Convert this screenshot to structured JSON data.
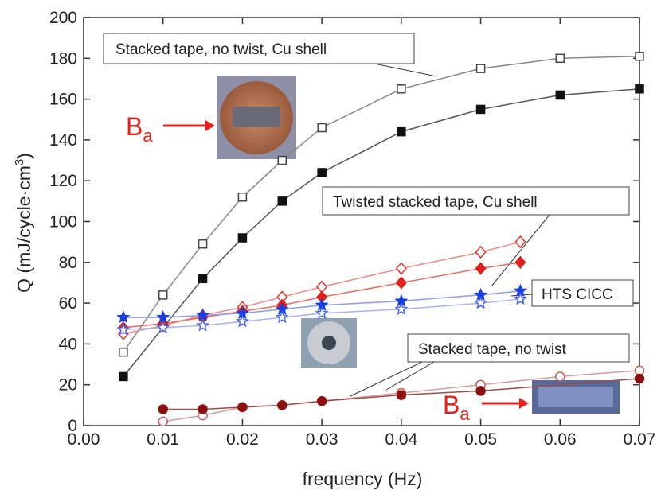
{
  "chart_data": {
    "type": "line",
    "x_label": "frequency (Hz)",
    "y_label": {
      "main": "Q (mJ/cycle·cm",
      "sup": "3",
      "end": ")"
    },
    "field_label": {
      "main": "B",
      "sub": "a"
    },
    "annotations": [
      "Stacked tape, no twist, Cu shell",
      "Twisted stacked tape,  Cu shell",
      "HTS CICC",
      "Stacked tape, no twist"
    ],
    "xlim": [
      0,
      0.07
    ],
    "ylim": [
      0,
      200
    ],
    "xticks": [
      {
        "value": 0,
        "label": "0.00"
      },
      0.01,
      0.02,
      0.03,
      0.04,
      0.05,
      0.06,
      0.07
    ],
    "yticks": [
      0,
      20,
      40,
      60,
      80,
      100,
      120,
      140,
      160,
      180,
      200
    ],
    "grid": false,
    "series": [
      {
        "color": "#444444",
        "line_color": "#888888",
        "marker": "square",
        "filled": false,
        "x": [
          0.005,
          0.01,
          0.015,
          0.02,
          0.025,
          0.03,
          0.04,
          0.05,
          0.06,
          0.07
        ],
        "values": [
          36,
          64,
          89,
          112,
          130,
          146,
          165,
          175,
          180,
          181
        ]
      },
      {
        "color": "#111111",
        "line_color": "#555555",
        "marker": "square",
        "filled": true,
        "x": [
          0.005,
          0.015,
          0.02,
          0.025,
          0.03,
          0.04,
          0.05,
          0.06,
          0.07
        ],
        "values": [
          24,
          72,
          92,
          110,
          124,
          144,
          155,
          162,
          165
        ]
      },
      {
        "color": "#e8342a",
        "line_color": "#f08a84",
        "marker": "diamond",
        "filled": false,
        "x": [
          0.005,
          0.01,
          0.015,
          0.02,
          0.025,
          0.03,
          0.04,
          0.05,
          0.055
        ],
        "values": [
          45,
          49,
          54,
          58,
          63,
          68,
          77,
          85,
          90
        ]
      },
      {
        "color": "#e0201a",
        "line_color": "#e86a64",
        "marker": "diamond",
        "filled": true,
        "x": [
          0.005,
          0.01,
          0.015,
          0.02,
          0.025,
          0.03,
          0.04,
          0.05,
          0.055
        ],
        "values": [
          48,
          50,
          53,
          56,
          59,
          63,
          70,
          77,
          80
        ]
      },
      {
        "color": "#1a3fe0",
        "line_color": "#8c9cf0",
        "marker": "star",
        "filled": true,
        "x": [
          0.005,
          0.01,
          0.015,
          0.02,
          0.025,
          0.03,
          0.04,
          0.05,
          0.055
        ],
        "values": [
          53,
          53,
          54,
          55,
          57,
          59,
          61,
          64,
          66
        ]
      },
      {
        "color": "#4a66e8",
        "line_color": "#a8b4f2",
        "marker": "star",
        "filled": false,
        "x": [
          0.005,
          0.01,
          0.015,
          0.02,
          0.025,
          0.03,
          0.04,
          0.05,
          0.055
        ],
        "values": [
          47,
          48,
          49,
          51,
          53,
          55,
          57,
          60,
          62
        ]
      },
      {
        "color": "#c06060",
        "line_color": "#d89a9a",
        "marker": "circle",
        "filled": false,
        "x": [
          0.01,
          0.015,
          0.02,
          0.025,
          0.03,
          0.04,
          0.05,
          0.06,
          0.07
        ],
        "values": [
          2,
          5,
          9,
          10,
          12,
          16,
          20,
          24,
          27
        ]
      },
      {
        "color": "#8b1010",
        "line_color": "#a04a4a",
        "marker": "circle",
        "filled": true,
        "x": [
          0.01,
          0.015,
          0.02,
          0.025,
          0.03,
          0.04,
          0.05,
          0.07
        ],
        "values": [
          8,
          8,
          9,
          10,
          12,
          15,
          17,
          23
        ]
      }
    ]
  }
}
